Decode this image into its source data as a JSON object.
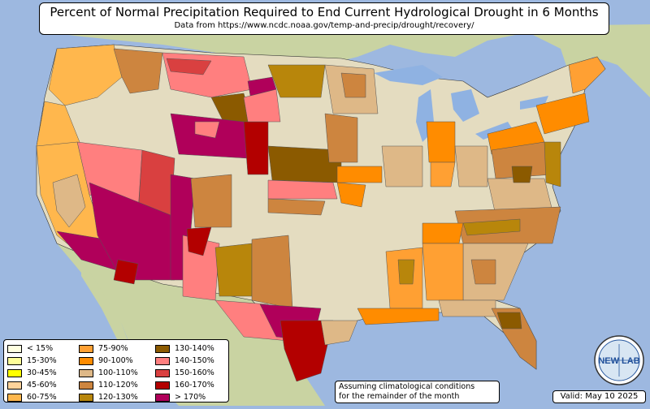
{
  "title": "Percent of Normal Precipitation Required to End Current Hydrological Drought in 6 Months",
  "subtitle": "Data from https://www.ncdc.noaa.gov/temp-and-precip/drought/recovery/",
  "note_line1": "Assuming climatological conditions",
  "note_line2": "for the remainder of the month",
  "valid": "Valid: May 10 2025",
  "logo_text": "NEW LAB",
  "colors": {
    "ocean": "#9db8e0",
    "land": "#e4dcc0",
    "land_green": "#c9d3a2",
    "lake": "#8fb2e2"
  },
  "legend": [
    {
      "label": "< 15%",
      "color": "#ffffe0"
    },
    {
      "label": "15-30%",
      "color": "#ffff99"
    },
    {
      "label": "30-45%",
      "color": "#ffff00"
    },
    {
      "label": "45-60%",
      "color": "#ffd39b"
    },
    {
      "label": "60-75%",
      "color": "#ffb74d"
    },
    {
      "label": "75-90%",
      "color": "#ffa033"
    },
    {
      "label": "90-100%",
      "color": "#ff8c00"
    },
    {
      "label": "100-110%",
      "color": "#deb887"
    },
    {
      "label": "110-120%",
      "color": "#cd853f"
    },
    {
      "label": "120-130%",
      "color": "#b8860b"
    },
    {
      "label": "130-140%",
      "color": "#8b5a00"
    },
    {
      "label": "140-150%",
      "color": "#ff7f7f"
    },
    {
      "label": "150-160%",
      "color": "#d94040"
    },
    {
      "label": "160-170%",
      "color": "#b30000"
    },
    {
      "label": "> 170%",
      "color": "#b0005a"
    }
  ]
}
